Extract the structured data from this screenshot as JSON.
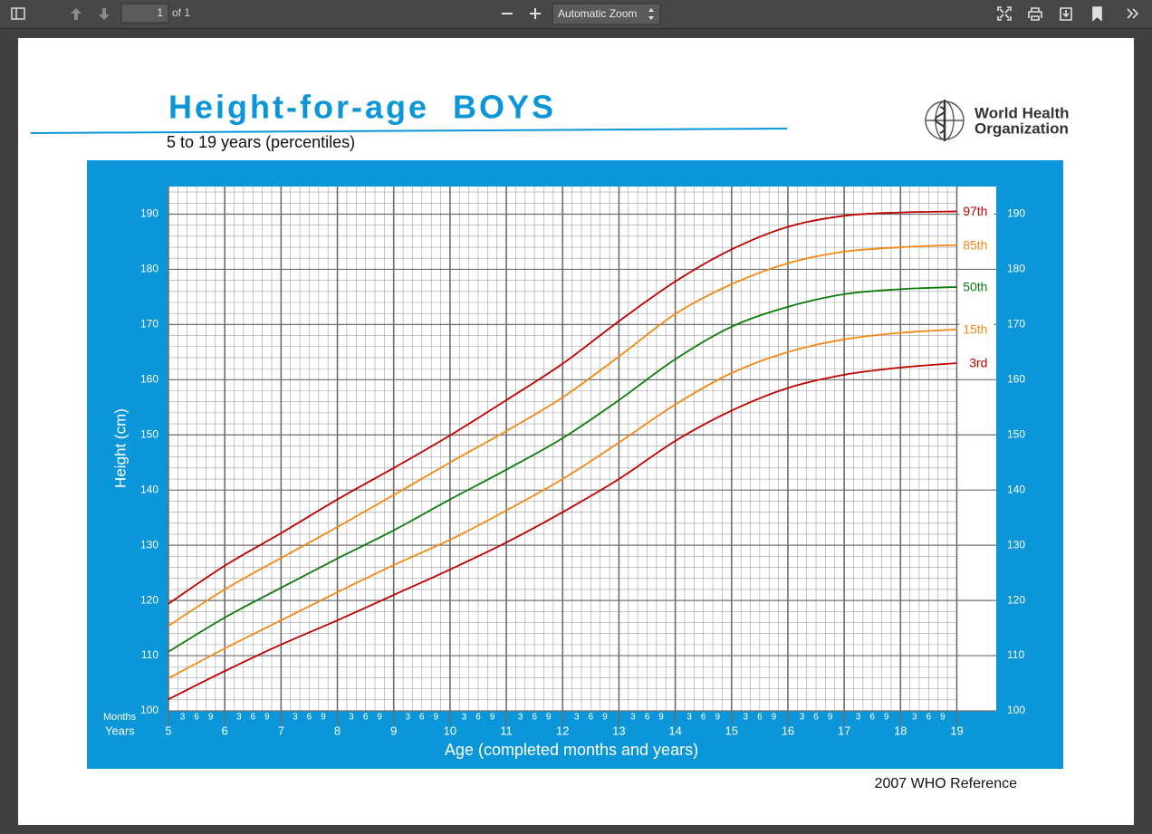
{
  "toolbar": {
    "page": "1",
    "page_count": "of 1",
    "zoom": "Automatic Zoom"
  },
  "logo_text": [
    "World Health",
    "Organization"
  ],
  "footer": "2007 WHO Reference",
  "chart_data": {
    "type": "line",
    "title": "Height-for-age  BOYS",
    "subtitle": "5 to 19 years (percentiles)",
    "x_label": "Age (completed months and years)",
    "y_label": "Height (cm)",
    "months_label": "Months",
    "years_label": "Years",
    "x": [
      5,
      6,
      7,
      8,
      9,
      10,
      11,
      12,
      13,
      14,
      15,
      16,
      17,
      18,
      19
    ],
    "xlim": [
      5,
      19.7
    ],
    "xticks": [
      5,
      6,
      7,
      8,
      9,
      10,
      11,
      12,
      13,
      14,
      15,
      16,
      17,
      18,
      19
    ],
    "month_ticks": [
      3,
      6,
      9
    ],
    "ylim": [
      100,
      195
    ],
    "yticks": [
      100,
      110,
      120,
      130,
      140,
      150,
      160,
      170,
      180,
      190
    ],
    "grid": true,
    "series": [
      {
        "name": "97th",
        "color": "#c00000",
        "values": [
          119.4,
          126.3,
          132.2,
          138.3,
          144,
          149.9,
          156.3,
          162.9,
          170.6,
          177.8,
          183.6,
          187.7,
          189.7,
          190.3,
          190.5
        ]
      },
      {
        "name": "85th",
        "color": "#f28a14",
        "values": [
          115.4,
          122,
          127.7,
          133.3,
          139.1,
          145,
          150.7,
          156.8,
          164.2,
          171.9,
          177.3,
          181.1,
          183.2,
          184,
          184.4
        ]
      },
      {
        "name": "50th",
        "color": "#0a7d0a",
        "values": [
          110.7,
          116.9,
          122.3,
          127.6,
          132.7,
          138.3,
          143.7,
          149.4,
          156.3,
          163.7,
          169.6,
          173.2,
          175.5,
          176.4,
          176.8
        ]
      },
      {
        "name": "15th",
        "color": "#f28a14",
        "values": [
          105.9,
          111.3,
          116.4,
          121.5,
          126.4,
          131,
          136.3,
          142,
          148.6,
          155.5,
          161.2,
          165,
          167.3,
          168.5,
          169.1
        ]
      },
      {
        "name": "3rd",
        "color": "#c00000",
        "values": [
          102.1,
          107.2,
          112,
          116.4,
          121,
          125.6,
          130.5,
          136,
          142,
          148.9,
          154.4,
          158.5,
          160.9,
          162.2,
          163
        ]
      }
    ]
  }
}
